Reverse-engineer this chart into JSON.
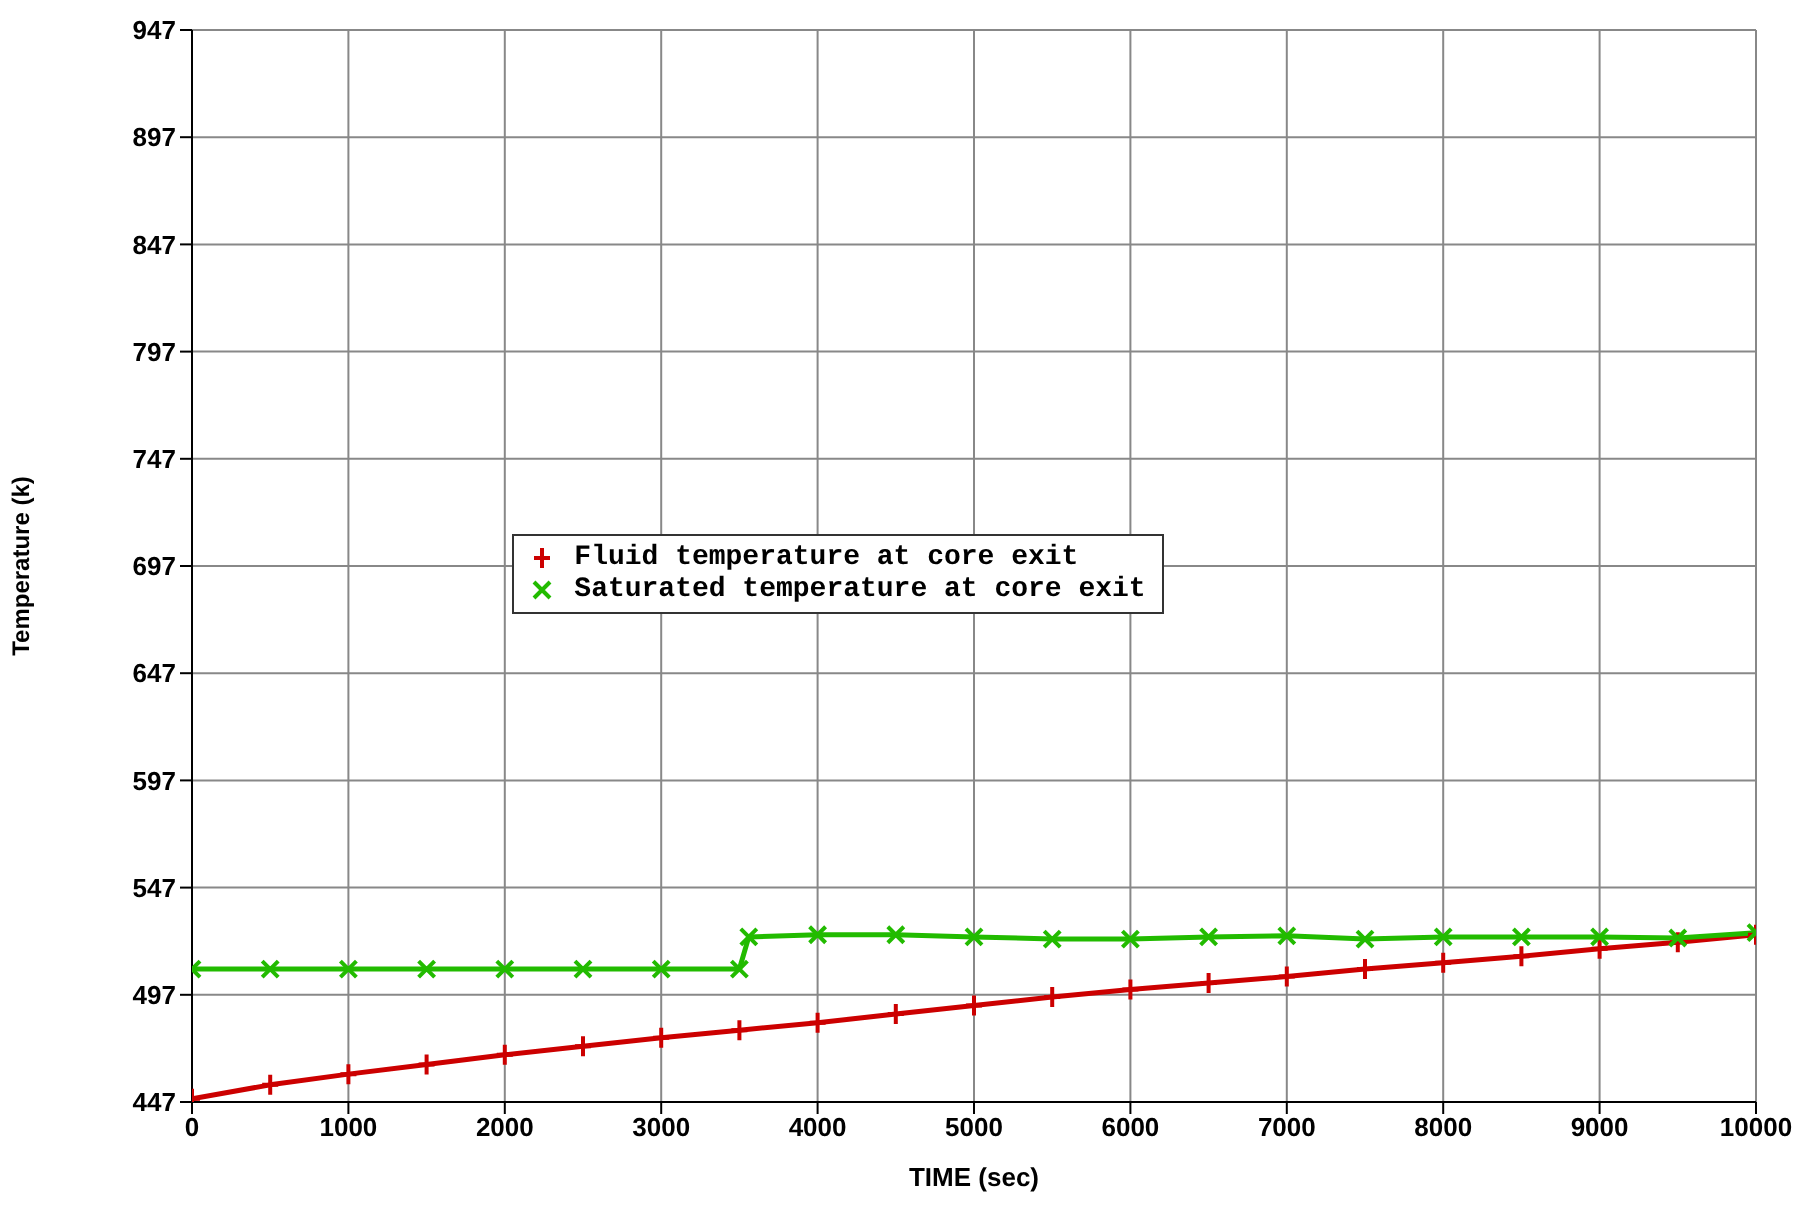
{
  "chart_data": {
    "type": "line",
    "xlabel": "TIME (sec)",
    "ylabel": "Temperature (k)",
    "xlim": [
      0,
      10000
    ],
    "xticks": [
      0,
      1000,
      2000,
      3000,
      4000,
      5000,
      6000,
      7000,
      8000,
      9000,
      10000
    ],
    "ylim": [
      447,
      947
    ],
    "yticks": [
      447,
      497,
      547,
      597,
      647,
      697,
      747,
      797,
      847,
      897,
      947
    ],
    "grid": true,
    "legend": "center",
    "series": [
      {
        "name": "Fluid temperature at core exit",
        "color": "#cc0000",
        "marker": "cross",
        "x": [
          0,
          500,
          1000,
          1500,
          2000,
          2500,
          3000,
          3500,
          4000,
          4500,
          5000,
          5500,
          6000,
          6500,
          7000,
          7500,
          8000,
          8500,
          9000,
          9500,
          10000
        ],
        "values": [
          448.5,
          455,
          460,
          464.5,
          469,
          473,
          477,
          480.5,
          484,
          488,
          492,
          496,
          499.5,
          502.5,
          505.5,
          509,
          512,
          515,
          518.5,
          521.5,
          525
        ]
      },
      {
        "name": "Saturated temperature at core exit",
        "color": "#22bb00",
        "marker": "cross",
        "x": [
          0,
          500,
          1000,
          1500,
          2000,
          2500,
          3000,
          3500,
          3560,
          4000,
          4500,
          5000,
          5500,
          6000,
          6500,
          7000,
          7500,
          8000,
          8500,
          9000,
          9500,
          10000
        ],
        "values": [
          509,
          509,
          509,
          509,
          509,
          509,
          509,
          509,
          524,
          525,
          525,
          524,
          523,
          523,
          524,
          524.5,
          523,
          524,
          524,
          524,
          523.5,
          526
        ]
      }
    ]
  }
}
